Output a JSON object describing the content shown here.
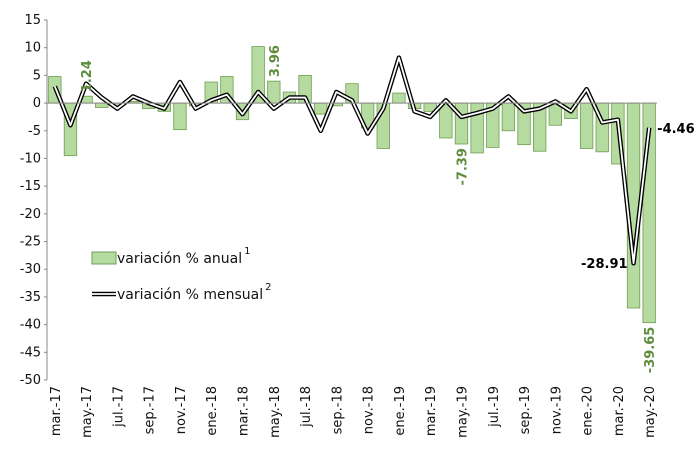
{
  "chart_data": {
    "type": "bar-line",
    "categories": [
      "mar.-17",
      null,
      "may.-17",
      null,
      "jul.-17",
      null,
      "sep.-17",
      null,
      "nov.-17",
      null,
      "ene.-18",
      null,
      "mar.-18",
      null,
      "may.-18",
      null,
      "jul.-18",
      null,
      "sep.-18",
      null,
      "nov.-18",
      null,
      "ene.-19",
      null,
      "mar.-19",
      null,
      "may.-19",
      null,
      "jul.-19",
      null,
      "sep.-19",
      null,
      "nov.-19",
      null,
      "ene.-20",
      null,
      "mar.-20",
      null,
      "may.-20"
    ],
    "series": [
      {
        "name": "variación % anual",
        "footnote": "1",
        "type": "bar",
        "color": "#b6dba0",
        "edge": "#6f9e52",
        "label_color": "#5e8d3d",
        "values": [
          4.8,
          -9.5,
          1.24,
          -0.8,
          -0.5,
          0.3,
          -1.0,
          -1.5,
          -4.8,
          -0.5,
          3.8,
          4.8,
          -3.0,
          10.2,
          3.96,
          2.0,
          5.0,
          -2.0,
          -0.5,
          3.5,
          -4.5,
          -8.2,
          1.8,
          -1.0,
          -1.5,
          -6.3,
          -7.39,
          -9.0,
          -8.0,
          -5.0,
          -7.5,
          -8.7,
          -4.0,
          -2.8,
          -8.2,
          -8.8,
          -11.0,
          -37.0,
          -39.65
        ],
        "value_labels": [
          null,
          null,
          "1.24",
          null,
          null,
          null,
          null,
          null,
          null,
          null,
          null,
          null,
          null,
          null,
          "3.96",
          null,
          null,
          null,
          null,
          null,
          null,
          null,
          null,
          null,
          null,
          null,
          "-7.39",
          null,
          null,
          null,
          null,
          null,
          null,
          null,
          null,
          null,
          null,
          null,
          "-39.65"
        ]
      },
      {
        "name": "variación % mensual",
        "footnote": "2",
        "type": "line",
        "color": "#000000",
        "values": [
          3.0,
          -4.0,
          3.5,
          1.0,
          -1.0,
          1.2,
          0.0,
          -1.0,
          3.8,
          -1.0,
          0.5,
          1.5,
          -2.0,
          2.0,
          -1.0,
          1.0,
          1.0,
          -5.0,
          2.0,
          0.5,
          -5.5,
          -1.0,
          8.2,
          -1.5,
          -2.5,
          0.5,
          -2.5,
          -1.8,
          -1.0,
          1.2,
          -1.5,
          -1.0,
          0.3,
          -1.5,
          2.5,
          -3.5,
          -3.0,
          -28.91,
          -4.46
        ],
        "value_labels": [
          null,
          null,
          null,
          null,
          null,
          null,
          null,
          null,
          null,
          null,
          null,
          null,
          null,
          null,
          null,
          null,
          null,
          null,
          null,
          null,
          null,
          null,
          null,
          null,
          null,
          null,
          null,
          null,
          null,
          null,
          null,
          null,
          null,
          null,
          null,
          null,
          null,
          "-28.91",
          "-4.46"
        ]
      }
    ],
    "ylim": [
      -50,
      15
    ],
    "yticks": [
      -50,
      -45,
      -40,
      -35,
      -30,
      -25,
      -20,
      -15,
      -10,
      -5,
      0,
      5,
      10,
      15
    ],
    "grid": false
  }
}
